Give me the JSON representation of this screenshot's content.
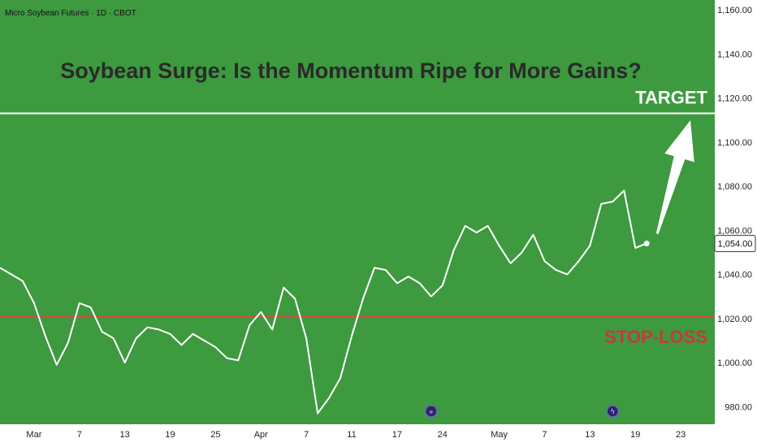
{
  "header": {
    "symbol": "Micro Soybean Futures · 1D · CBOT",
    "headline": "Soybean Surge: Is the Momentum Ripe for More Gains?"
  },
  "annotations": {
    "target_label": "TARGET",
    "stop_label": "STOP-LOSS",
    "target_level": 1113,
    "stop_level": 1021,
    "target_line_color": "#ffffff",
    "stop_line_color": "#d94a3a"
  },
  "colors": {
    "plot_background": "#3d9a3f",
    "price_line": "#ffffff",
    "axis_background": "#ffffff"
  },
  "price_badge": {
    "value": "1,054.00",
    "level": 1054
  },
  "event_icons": [
    {
      "name": "fast-forward-icon",
      "index": 38,
      "glyph": "»"
    },
    {
      "name": "lightning-icon",
      "index": 54,
      "glyph": "ϟ"
    }
  ],
  "chart_data": {
    "type": "line",
    "title": "Soybean Surge: Is the Momentum Ripe for More Gains?",
    "xlabel": "",
    "ylabel": "",
    "ylim": [
      975,
      1160
    ],
    "yticks": [
      {
        "value": 980,
        "label": "980.00"
      },
      {
        "value": 1000,
        "label": "1,000.00"
      },
      {
        "value": 1020,
        "label": "1,020.00"
      },
      {
        "value": 1040,
        "label": "1,040.00"
      },
      {
        "value": 1060,
        "label": "1,060.00"
      },
      {
        "value": 1080,
        "label": "1,080.00"
      },
      {
        "value": 1100,
        "label": "1,100.00"
      },
      {
        "value": 1120,
        "label": "1,120.00"
      },
      {
        "value": 1140,
        "label": "1,140.00"
      },
      {
        "value": 1160,
        "label": "1,160.00"
      }
    ],
    "xticks": [
      {
        "label": "Mar",
        "index": 3
      },
      {
        "label": "7",
        "index": 7
      },
      {
        "label": "13",
        "index": 11
      },
      {
        "label": "19",
        "index": 15
      },
      {
        "label": "25",
        "index": 19
      },
      {
        "label": "Apr",
        "index": 23
      },
      {
        "label": "7",
        "index": 27
      },
      {
        "label": "11",
        "index": 31
      },
      {
        "label": "17",
        "index": 35
      },
      {
        "label": "24",
        "index": 39
      },
      {
        "label": "May",
        "index": 44
      },
      {
        "label": "7",
        "index": 48
      },
      {
        "label": "13",
        "index": 52
      },
      {
        "label": "19",
        "index": 56
      },
      {
        "label": "23",
        "index": 60
      }
    ],
    "x_index_range": [
      0,
      63
    ],
    "grid": false,
    "series": [
      {
        "values": [
          1043,
          1040,
          1037,
          1027,
          1012,
          999,
          1009,
          1027,
          1025,
          1014,
          1011,
          1000,
          1011,
          1016,
          1015,
          1013,
          1008,
          1013,
          1010,
          1007,
          1002,
          1001,
          1017,
          1023,
          1015,
          1034,
          1029,
          1011,
          977,
          984,
          993,
          1012,
          1029,
          1043,
          1042,
          1036,
          1039,
          1036,
          1030,
          1035,
          1051,
          1062,
          1059,
          1062,
          1053,
          1045,
          1050,
          1058,
          1046,
          1042,
          1040,
          1046,
          1053,
          1072,
          1073,
          1078,
          1052,
          1054
        ]
      }
    ]
  }
}
